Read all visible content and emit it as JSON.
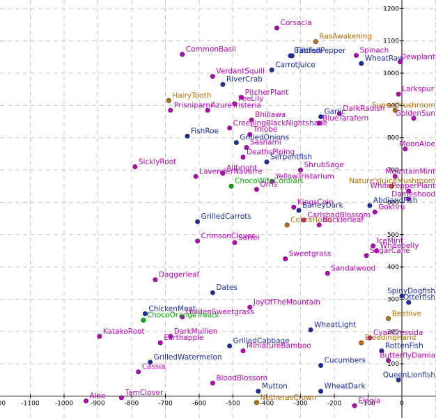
{
  "colors": {
    "magenta": "#c000c0",
    "navy": "#1a2bb0",
    "orange": "#c07000",
    "green": "#00b000",
    "grid": "#c8c8c8"
  },
  "chart_data": {
    "type": "scatter",
    "title": "",
    "xlabel": "",
    "ylabel": "",
    "xlim": [
      -1230,
      25
    ],
    "ylim": [
      -20,
      1210
    ],
    "grid": true,
    "xticks": [
      -1200,
      -1100,
      -1000,
      -900,
      -800,
      -700,
      -600,
      -500,
      -400,
      -300,
      -200,
      -100,
      0
    ],
    "yticks": [
      100,
      200,
      300,
      400,
      500,
      600,
      700,
      800,
      900,
      1000,
      1100,
      1200
    ],
    "points": [
      {
        "label": "Corsacia",
        "x": -370,
        "y": 1140,
        "color": "magenta"
      },
      {
        "label": "RasAwakening",
        "x": -255,
        "y": 1098,
        "color": "orange"
      },
      {
        "label": "CommonBasil",
        "x": -650,
        "y": 1058,
        "color": "magenta"
      },
      {
        "label": "Tilefish",
        "x": -325,
        "y": 1054,
        "color": "navy"
      },
      {
        "label": "BattledPepper",
        "x": -330,
        "y": 1054,
        "color": "navy"
      },
      {
        "label": "Spinach",
        "x": -135,
        "y": 1055,
        "color": "magenta"
      },
      {
        "label": "WheatRaw",
        "x": -120,
        "y": 1030,
        "color": "navy"
      },
      {
        "label": "Dewplant",
        "x": -5,
        "y": 1035,
        "color": "magenta"
      },
      {
        "label": "CarrotJuice",
        "x": -385,
        "y": 1010,
        "color": "navy"
      },
      {
        "label": "VerdantSquill",
        "x": -560,
        "y": 990,
        "color": "magenta"
      },
      {
        "label": "RiverCrab",
        "x": -530,
        "y": 965,
        "color": "navy"
      },
      {
        "label": "Larkspur",
        "x": -10,
        "y": 935,
        "color": "magenta"
      },
      {
        "label": "PitcherPlant",
        "x": -475,
        "y": 925,
        "color": "magenta"
      },
      {
        "label": "HairyTooth",
        "x": -690,
        "y": 915,
        "color": "orange"
      },
      {
        "label": "FeeLily",
        "x": -495,
        "y": 905,
        "color": "magenta"
      },
      {
        "label": "SunsetMushroom",
        "x": -20,
        "y": 885,
        "color": "orange"
      },
      {
        "label": "Prisniparni",
        "x": -685,
        "y": 885,
        "color": "magenta"
      },
      {
        "label": "AzureTristeria",
        "x": -575,
        "y": 885,
        "color": "magenta"
      },
      {
        "label": "Garlic",
        "x": -240,
        "y": 865,
        "color": "navy"
      },
      {
        "label": "DarkRadish",
        "x": -185,
        "y": 875,
        "color": "magenta"
      },
      {
        "label": "GoldenSun",
        "x": 35,
        "y": 860,
        "color": "magenta"
      },
      {
        "label": "Bhillawa",
        "x": -445,
        "y": 855,
        "color": "magenta"
      },
      {
        "label": "BlueTarafern",
        "x": -245,
        "y": 845,
        "color": "magenta"
      },
      {
        "label": "CreepingBlackNightshade",
        "x": -510,
        "y": 830,
        "color": "magenta"
      },
      {
        "label": "Trilobe",
        "x": -450,
        "y": 810,
        "color": "magenta"
      },
      {
        "label": "FishRoe",
        "x": -635,
        "y": 805,
        "color": "navy"
      },
      {
        "label": "GrilledOnions",
        "x": -490,
        "y": 785,
        "color": "navy"
      },
      {
        "label": "Sashami",
        "x": -460,
        "y": 770,
        "color": "magenta"
      },
      {
        "label": "MoonAloe",
        "x": 10,
        "y": 765,
        "color": "magenta"
      },
      {
        "label": "DeathsPiping",
        "x": -470,
        "y": 740,
        "color": "magenta"
      },
      {
        "label": "Serpentfish",
        "x": -400,
        "y": 725,
        "color": "navy"
      },
      {
        "label": "SicklyRoot",
        "x": -790,
        "y": 710,
        "color": "magenta"
      },
      {
        "label": "ShrubSage",
        "x": -300,
        "y": 700,
        "color": "magenta"
      },
      {
        "label": "Allbright",
        "x": -530,
        "y": 690,
        "color": "magenta"
      },
      {
        "label": "LavenderNavarre",
        "x": -610,
        "y": 680,
        "color": "magenta"
      },
      {
        "label": "YellowTristarium",
        "x": -385,
        "y": 665,
        "color": "magenta"
      },
      {
        "label": "MountainMint",
        "x": -20,
        "y": 680,
        "color": "magenta"
      },
      {
        "label": "ChocoWifeCordials",
        "x": -505,
        "y": 650,
        "color": "green"
      },
      {
        "label": "Nature'sJuiceMushroom",
        "x": -30,
        "y": 650,
        "color": "orange"
      },
      {
        "label": "Orris",
        "x": -430,
        "y": 640,
        "color": "magenta"
      },
      {
        "label": "WhitePepperPlant",
        "x": 20,
        "y": 635,
        "color": "magenta"
      },
      {
        "label": "Dameshood",
        "x": 20,
        "y": 610,
        "color": "magenta"
      },
      {
        "label": "AbdiandFish",
        "x": -95,
        "y": 590,
        "color": "navy"
      },
      {
        "label": "KingsCoin",
        "x": -320,
        "y": 585,
        "color": "magenta"
      },
      {
        "label": "BarleyDark",
        "x": -305,
        "y": 575,
        "color": "navy"
      },
      {
        "label": "Gokhru",
        "x": -80,
        "y": 570,
        "color": "magenta"
      },
      {
        "label": "GrilledCarrots",
        "x": -605,
        "y": 540,
        "color": "navy"
      },
      {
        "label": "CarlsbadBlossom",
        "x": -290,
        "y": 545,
        "color": "magenta"
      },
      {
        "label": "CobraHood",
        "x": -340,
        "y": 530,
        "color": "orange"
      },
      {
        "label": "Bucklerleaf",
        "x": -245,
        "y": 530,
        "color": "magenta"
      },
      {
        "label": "CrimsonClover",
        "x": -605,
        "y": 480,
        "color": "magenta"
      },
      {
        "label": "Sorrel",
        "x": -495,
        "y": 475,
        "color": "magenta"
      },
      {
        "label": "IceMint",
        "x": -85,
        "y": 465,
        "color": "magenta"
      },
      {
        "label": "Whitebelly",
        "x": -75,
        "y": 450,
        "color": "magenta"
      },
      {
        "label": "SugarCane",
        "x": -105,
        "y": 435,
        "color": "magenta"
      },
      {
        "label": "Sweetgrass",
        "x": -345,
        "y": 425,
        "color": "magenta"
      },
      {
        "label": "Sandalwood",
        "x": -220,
        "y": 380,
        "color": "magenta"
      },
      {
        "label": "Daggerleaf",
        "x": -730,
        "y": 360,
        "color": "magenta"
      },
      {
        "label": "Dates",
        "x": -560,
        "y": 320,
        "color": "navy"
      },
      {
        "label": "SpinyDogfish",
        "x": 0,
        "y": 310,
        "color": "navy"
      },
      {
        "label": "Otterfish",
        "x": 20,
        "y": 290,
        "color": "navy"
      },
      {
        "label": "JoyOfTheMountain",
        "x": -450,
        "y": 275,
        "color": "magenta"
      },
      {
        "label": "ChickenMeat",
        "x": -760,
        "y": 255,
        "color": "navy"
      },
      {
        "label": "GoldenSweetgrass",
        "x": -650,
        "y": 245,
        "color": "magenta"
      },
      {
        "label": "ChocoOrangeTreats",
        "x": -765,
        "y": 235,
        "color": "green"
      },
      {
        "label": "Beehive",
        "x": -40,
        "y": 240,
        "color": "orange"
      },
      {
        "label": "WheatLight",
        "x": -270,
        "y": 205,
        "color": "navy"
      },
      {
        "label": "KatakoRoot",
        "x": -895,
        "y": 185,
        "color": "magenta"
      },
      {
        "label": "DarkMullien",
        "x": -685,
        "y": 185,
        "color": "magenta"
      },
      {
        "label": "CyanCressida",
        "x": -95,
        "y": 180,
        "color": "magenta"
      },
      {
        "label": "Earthapple",
        "x": -715,
        "y": 165,
        "color": "magenta"
      },
      {
        "label": "BleedingHand",
        "x": -120,
        "y": 165,
        "color": "orange"
      },
      {
        "label": "GrilledCabbage",
        "x": -510,
        "y": 155,
        "color": "navy"
      },
      {
        "label": "MiniatureBamboo",
        "x": -470,
        "y": 140,
        "color": "magenta"
      },
      {
        "label": "RottenFish",
        "x": -60,
        "y": 140,
        "color": "navy"
      },
      {
        "label": "GrilledWatermelon",
        "x": -745,
        "y": 105,
        "color": "navy"
      },
      {
        "label": "ButterflyDamia",
        "x": -40,
        "y": 110,
        "color": "magenta"
      },
      {
        "label": "Cucumbers",
        "x": -240,
        "y": 95,
        "color": "navy"
      },
      {
        "label": "Cassia",
        "x": -780,
        "y": 75,
        "color": "magenta"
      },
      {
        "label": "QueenLionfish",
        "x": -10,
        "y": 50,
        "color": "navy"
      },
      {
        "label": "BloodBlossom",
        "x": -560,
        "y": 40,
        "color": "magenta"
      },
      {
        "label": "Mutton",
        "x": -425,
        "y": 15,
        "color": "navy"
      },
      {
        "label": "WheatDark",
        "x": -240,
        "y": 15,
        "color": "navy"
      },
      {
        "label": "TamClover",
        "x": -830,
        "y": -5,
        "color": "magenta"
      },
      {
        "label": "Aloe",
        "x": -935,
        "y": -15,
        "color": "magenta"
      },
      {
        "label": "NetherasCrown",
        "x": -430,
        "y": -20,
        "color": "orange"
      },
      {
        "label": "Elegia",
        "x": -140,
        "y": -30,
        "color": "magenta"
      }
    ]
  }
}
